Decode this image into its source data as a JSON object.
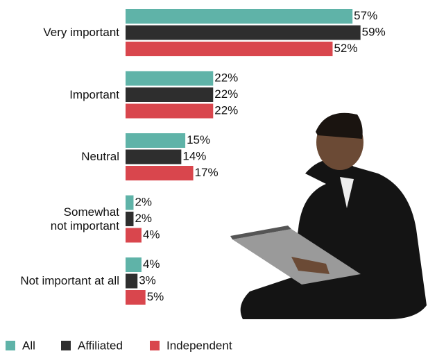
{
  "chart_data": {
    "type": "bar",
    "orientation": "horizontal",
    "categories": [
      "Very important",
      "Important",
      "Neutral",
      "Somewhat\nnot important",
      "Not important at all"
    ],
    "series": [
      {
        "name": "All",
        "color": "#5fb3a8",
        "values": [
          57,
          22,
          15,
          2,
          4
        ],
        "value_labels": [
          "57%",
          "22%",
          "15%",
          "2%",
          "4%"
        ]
      },
      {
        "name": "Affiliated",
        "color": "#2e2e2e",
        "values": [
          59,
          22,
          14,
          2,
          3
        ],
        "value_labels": [
          "59%",
          "22%",
          "14%",
          "2%",
          "3%"
        ]
      },
      {
        "name": "Independent",
        "color": "#d9464d",
        "values": [
          52,
          22,
          17,
          4,
          5
        ],
        "value_labels": [
          "52%",
          "22%",
          "17%",
          "4%",
          "5%"
        ]
      }
    ]
  }
}
